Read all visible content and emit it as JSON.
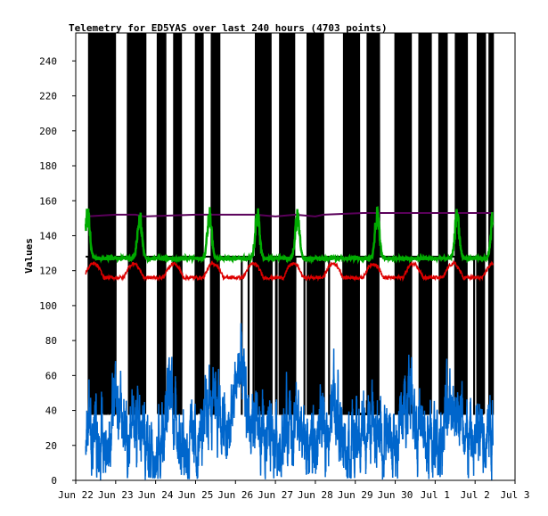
{
  "chart_data": {
    "type": "line",
    "title": "Telemetry for ED5YAS over last 240 hours (4703 points)",
    "xlabel": "",
    "ylabel": "Values",
    "xlim": [
      0,
      11
    ],
    "ylim": [
      0,
      256
    ],
    "x_ticks": [
      {
        "value": 0,
        "label": "Jun 22"
      },
      {
        "value": 1,
        "label": "Jun 23"
      },
      {
        "value": 2,
        "label": "Jun 24"
      },
      {
        "value": 3,
        "label": "Jun 25"
      },
      {
        "value": 4,
        "label": "Jun 26"
      },
      {
        "value": 5,
        "label": "Jun 27"
      },
      {
        "value": 6,
        "label": "Jun 28"
      },
      {
        "value": 7,
        "label": "Jun 29"
      },
      {
        "value": 8,
        "label": "Jun 30"
      },
      {
        "value": 9,
        "label": "Jul 1"
      },
      {
        "value": 10,
        "label": "Jul 2"
      },
      {
        "value": 11,
        "label": "Jul 3"
      }
    ],
    "y_ticks": [
      0,
      20,
      40,
      60,
      80,
      100,
      120,
      140,
      160,
      180,
      200,
      220,
      240
    ],
    "grid": false,
    "legend": "none",
    "series": [
      {
        "color": "#000000",
        "kind": "switching",
        "low": 38,
        "high": 256,
        "base": 128,
        "x_range": [
          0.25,
          10.45
        ],
        "bursts": [
          [
            0.32,
            1.0
          ],
          [
            1.3,
            1.75
          ],
          [
            2.05,
            2.25
          ],
          [
            2.45,
            2.65
          ],
          [
            3.0,
            3.2
          ],
          [
            3.4,
            3.6
          ],
          [
            4.5,
            4.9
          ],
          [
            5.1,
            5.5
          ],
          [
            5.8,
            6.2
          ],
          [
            6.7,
            7.1
          ],
          [
            7.3,
            7.6
          ],
          [
            8.0,
            8.4
          ],
          [
            8.6,
            8.9
          ],
          [
            9.1,
            9.3
          ],
          [
            9.5,
            9.8
          ],
          [
            10.05,
            10.25
          ],
          [
            10.35,
            10.45
          ]
        ],
        "random_extra": 60
      },
      {
        "color": "#5a005a",
        "kind": "segments",
        "points": [
          [
            0.25,
            151
          ],
          [
            1.0,
            152
          ],
          [
            1.5,
            152
          ],
          [
            1.7,
            151
          ],
          [
            3.0,
            152
          ],
          [
            4.5,
            152
          ],
          [
            5.0,
            151
          ],
          [
            5.5,
            152
          ],
          [
            6.0,
            151
          ],
          [
            6.2,
            152
          ],
          [
            7.2,
            153
          ],
          [
            10.2,
            153
          ],
          [
            10.45,
            153
          ]
        ]
      },
      {
        "color": "#00aa00",
        "kind": "daily",
        "x_range": [
          0.25,
          10.45
        ],
        "base": 127,
        "amplitude": 30,
        "peak_centers": [
          0.3,
          1.6,
          3.35,
          4.55,
          5.55,
          7.55,
          9.55,
          10.45
        ]
      },
      {
        "color": "#dd0000",
        "kind": "daily_red",
        "x_range": [
          0.25,
          10.45
        ],
        "base": 116,
        "amplitude": 8
      },
      {
        "color": "#0066cc",
        "kind": "noise",
        "x_range": [
          0.25,
          10.45
        ],
        "mean": 25,
        "amplitude": 22,
        "peaks": [
          [
            1.0,
            50
          ],
          [
            4.05,
            80
          ],
          [
            3.45,
            62
          ],
          [
            2.4,
            52
          ],
          [
            6.5,
            48
          ],
          [
            8.35,
            58
          ],
          [
            9.5,
            52
          ]
        ]
      }
    ]
  }
}
